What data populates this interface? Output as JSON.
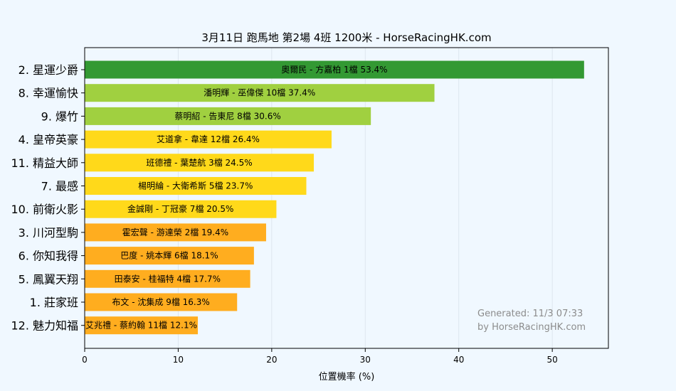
{
  "chart_data": {
    "type": "bar",
    "orientation": "horizontal",
    "title": "3月11日  跑馬地  第2場  4班  1200米 - HorseRacingHK.com",
    "xlabel": "位置機率 (%)",
    "ylabel": "",
    "xlim": [
      0,
      56
    ],
    "xticks": [
      "0",
      "10",
      "20",
      "30",
      "40",
      "50"
    ],
    "grid": "vertical",
    "categories": [
      "2. 星運少爵",
      "8. 幸運愉快",
      "9. 爆竹",
      "4. 皇帝英豪",
      "11. 精益大師",
      "7. 最感",
      "10. 前衛火影",
      "3. 川河型駒",
      "6. 你知我得",
      "5. 鳳翼天翔",
      "1. 莊家班",
      "12. 魅力知福"
    ],
    "values": [
      53.4,
      37.4,
      30.6,
      26.4,
      24.5,
      23.7,
      20.5,
      19.4,
      18.1,
      17.7,
      16.3,
      12.1
    ],
    "bar_labels": [
      "奧爾民 - 方嘉柏 1檔  53.4%",
      "潘明輝 - 巫偉傑 10檔  37.4%",
      "蔡明紹 - 告東尼 8檔  30.6%",
      "艾道拿 - 韋達 12檔  26.4%",
      "班德禮 - 葉楚航 3檔  24.5%",
      "楊明綸 - 大衛希斯 5檔  23.7%",
      "金誠剛 - 丁冠豪 7檔  20.5%",
      "霍宏聲 - 游達榮 2檔  19.4%",
      "巴度 - 姚本輝 6檔  18.1%",
      "田泰安 - 桂福特 4檔  17.7%",
      "布文 - 沈集成 9檔  16.3%",
      "艾兆禮 - 蔡約翰 11檔  12.1%"
    ],
    "bar_colors": [
      "#339933",
      "#a0d040",
      "#a0d040",
      "#ffd91a",
      "#ffd91a",
      "#ffd91a",
      "#ffd91a",
      "#ffad1f",
      "#ffad1f",
      "#ffad1f",
      "#ffad1f",
      "#ffad1f"
    ],
    "annotation": [
      "Generated: 11/3 07:33",
      "by HorseRacingHK.com"
    ]
  },
  "colors": {
    "background": "#f0f8ff",
    "grid": "#dde6ee",
    "axis": "#000000",
    "annotation": "#8c8c8c"
  }
}
